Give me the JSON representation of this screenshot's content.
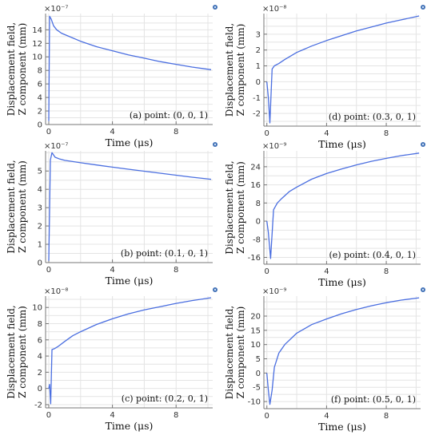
{
  "colors": {
    "line": "#4a6ee0",
    "grid": "#e4e4e4",
    "axis": "#777777",
    "icon": "#3f6fb5"
  },
  "chart_data": [
    {
      "id": "a",
      "type": "line",
      "xlabel": "Time (μs)",
      "ylabel": [
        "Displacement field,",
        "Z component (mm)"
      ],
      "annotation": "(a) point: (0, 0, 1)",
      "exponent_label": "×10⁻⁷",
      "xlim": [
        -0.2,
        10.3
      ],
      "ylim": [
        0,
        16.4
      ],
      "xticks": [
        0,
        4,
        8
      ],
      "yticks": [
        0,
        2,
        4,
        6,
        8,
        10,
        12,
        14
      ],
      "grid": true,
      "x": [
        0,
        0.05,
        0.15,
        0.3,
        0.5,
        0.8,
        1.2,
        2,
        3,
        4,
        5,
        6,
        7,
        8,
        9,
        10.2
      ],
      "y": [
        0.5,
        16.0,
        15.6,
        14.6,
        14.0,
        13.5,
        13.1,
        12.3,
        11.5,
        10.9,
        10.3,
        9.8,
        9.3,
        8.9,
        8.5,
        8.1
      ]
    },
    {
      "id": "d",
      "type": "line",
      "xlabel": "Time (μs)",
      "ylabel": [
        "Displacement field,",
        "Z component (mm)"
      ],
      "annotation": "(d) point: (0.3, 0, 1)",
      "exponent_label": "×10⁻⁸",
      "xlim": [
        -0.2,
        10.3
      ],
      "ylim": [
        -2.8,
        4.3
      ],
      "xticks": [
        0,
        4,
        8
      ],
      "yticks": [
        -2,
        -1,
        0,
        1,
        2,
        3
      ],
      "grid": true,
      "x": [
        0,
        0.1,
        0.2,
        0.35,
        0.5,
        0.8,
        1.2,
        2,
        3,
        4,
        5,
        6,
        7,
        8,
        9,
        10.2
      ],
      "y": [
        0,
        -1.0,
        -2.6,
        0.8,
        1.0,
        1.15,
        1.4,
        1.85,
        2.25,
        2.6,
        2.9,
        3.2,
        3.45,
        3.7,
        3.9,
        4.15
      ]
    },
    {
      "id": "b",
      "type": "line",
      "xlabel": "Time (μs)",
      "ylabel": [
        "Displacement field,",
        "Z component (mm)"
      ],
      "annotation": "(b) point: (0.1, 0, 1)",
      "exponent_label": "×10⁻⁷",
      "xlim": [
        -0.2,
        10.3
      ],
      "ylim": [
        0,
        6.1
      ],
      "xticks": [
        0,
        4,
        8
      ],
      "yticks": [
        0,
        1,
        2,
        3,
        4,
        5
      ],
      "grid": true,
      "x": [
        0,
        0.1,
        0.2,
        0.4,
        0.7,
        1,
        2,
        3,
        4,
        5,
        6,
        7,
        8,
        9,
        10.2
      ],
      "y": [
        0.1,
        5.6,
        6.0,
        5.75,
        5.65,
        5.58,
        5.45,
        5.33,
        5.21,
        5.1,
        4.99,
        4.88,
        4.77,
        4.66,
        4.55
      ]
    },
    {
      "id": "e",
      "type": "line",
      "xlabel": "Time (μs)",
      "ylabel": [
        "Displacement field,",
        "Z component (mm)"
      ],
      "annotation": "(e) point: (0.4, 0, 1)",
      "exponent_label": "×10⁻⁹",
      "xlim": [
        -0.2,
        10.3
      ],
      "ylim": [
        -19,
        31
      ],
      "xticks": [
        0,
        4,
        8
      ],
      "yticks": [
        -16,
        -8,
        0,
        8,
        16,
        24
      ],
      "grid": true,
      "x": [
        0,
        0.1,
        0.25,
        0.45,
        0.7,
        1,
        1.5,
        2,
        3,
        4,
        5,
        6,
        7,
        8,
        9,
        10.2
      ],
      "y": [
        0,
        -5,
        -16.5,
        5,
        8,
        10,
        13,
        15,
        18.5,
        21,
        23,
        24.8,
        26.4,
        27.7,
        28.9,
        30
      ]
    },
    {
      "id": "c",
      "type": "line",
      "xlabel": "Time (μs)",
      "ylabel": [
        "Displacement field,",
        "Z component (mm)"
      ],
      "annotation": "(c) point: (0.2, 0, 1)",
      "exponent_label": "×10⁻⁸",
      "xlim": [
        -0.2,
        10.3
      ],
      "ylim": [
        -2.4,
        11.4
      ],
      "xticks": [
        0,
        4,
        8
      ],
      "yticks": [
        -2,
        0,
        2,
        4,
        6,
        8,
        10
      ],
      "grid": true,
      "x": [
        0,
        0.05,
        0.12,
        0.2,
        0.35,
        0.6,
        1,
        1.5,
        2,
        3,
        4,
        5,
        6,
        7,
        8,
        9,
        10.2
      ],
      "y": [
        0,
        0.5,
        -1.9,
        4.8,
        4.9,
        5.2,
        5.8,
        6.5,
        7.0,
        7.9,
        8.6,
        9.2,
        9.7,
        10.1,
        10.5,
        10.85,
        11.2
      ]
    },
    {
      "id": "f",
      "type": "line",
      "xlabel": "Time (μs)",
      "ylabel": [
        "Displacement field,",
        "Z component (mm)"
      ],
      "annotation": "(f) point: (0.5, 0, 1)",
      "exponent_label": "×10⁻⁹",
      "xlim": [
        -0.2,
        10.3
      ],
      "ylim": [
        -12.5,
        27
      ],
      "xticks": [
        0,
        4,
        8
      ],
      "yticks": [
        -10,
        -5,
        0,
        5,
        10,
        15,
        20
      ],
      "grid": true,
      "x": [
        0,
        0.1,
        0.2,
        0.35,
        0.5,
        0.8,
        1.2,
        2,
        3,
        4,
        5,
        6,
        7,
        8,
        9,
        10.2
      ],
      "y": [
        0,
        -6,
        -11,
        -6,
        2,
        7,
        10,
        14,
        17,
        19,
        20.8,
        22.3,
        23.6,
        24.7,
        25.6,
        26.4
      ]
    }
  ]
}
